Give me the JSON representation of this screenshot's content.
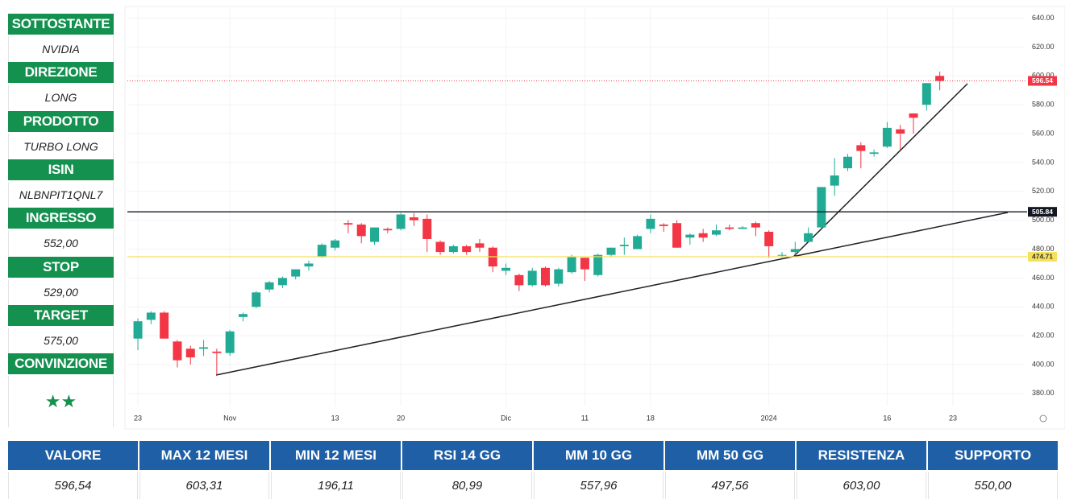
{
  "panel": [
    {
      "label": "SOTTOSTANTE",
      "value": "NVIDIA"
    },
    {
      "label": "DIREZIONE",
      "value": "LONG"
    },
    {
      "label": "PRODOTTO",
      "value": "TURBO LONG"
    },
    {
      "label": "ISIN",
      "value": "NLBNPIT1QNL7"
    },
    {
      "label": "INGRESSO",
      "value": "552,00"
    },
    {
      "label": "STOP",
      "value": "529,00"
    },
    {
      "label": "TARGET",
      "value": "575,00"
    },
    {
      "label": "CONVINZIONE",
      "value": "★★"
    }
  ],
  "chart_data": {
    "type": "candlestick",
    "up_color": "#22ab94",
    "down_color": "#f23645",
    "open": [
      418,
      431,
      436,
      416,
      411,
      411,
      409,
      408,
      433,
      440,
      452,
      455,
      461,
      468,
      475,
      481,
      498,
      497,
      485,
      494,
      494,
      502,
      501,
      485,
      478,
      482,
      484,
      481,
      465,
      462,
      455,
      467,
      456,
      464,
      474,
      462,
      476,
      482,
      480,
      494,
      497,
      498,
      488,
      491,
      490,
      495,
      494,
      498,
      492,
      476,
      478,
      485,
      495,
      524,
      536,
      552,
      546,
      551,
      563,
      574,
      580,
      600
    ],
    "high": [
      432,
      437,
      437,
      417,
      413,
      417,
      411,
      424,
      436,
      451,
      458,
      461,
      466,
      472,
      484,
      487,
      500,
      498,
      495,
      495,
      505,
      505,
      504,
      486,
      483,
      483,
      487,
      482,
      470,
      463,
      467,
      468,
      467,
      476,
      474,
      477,
      481,
      488,
      490,
      504,
      498,
      500,
      491,
      494,
      497,
      497,
      496,
      499,
      493,
      478,
      485,
      495,
      523,
      543,
      546,
      554,
      549,
      568,
      566,
      574,
      595,
      603
    ],
    "low": [
      410,
      428,
      420,
      398,
      400,
      406,
      393,
      406,
      430,
      439,
      450,
      453,
      459,
      465,
      474,
      479,
      491,
      484,
      483,
      491,
      493,
      496,
      478,
      476,
      477,
      476,
      478,
      464,
      462,
      451,
      454,
      454,
      454,
      463,
      458,
      461,
      475,
      476,
      480,
      491,
      492,
      481,
      483,
      485,
      489,
      493,
      494,
      489,
      474,
      474,
      476,
      485,
      494,
      517,
      534,
      536,
      544,
      550,
      549,
      560,
      576,
      590
    ],
    "close": [
      430,
      436,
      418,
      403,
      405,
      412,
      408,
      423,
      435,
      450,
      457,
      460,
      466,
      470,
      483,
      486,
      497,
      489,
      495,
      493,
      504,
      500,
      487,
      478,
      482,
      478,
      481,
      468,
      467,
      455,
      465,
      455,
      466,
      475,
      466,
      476,
      481,
      483,
      489,
      501,
      496,
      481,
      490,
      488,
      493,
      494,
      495,
      495,
      482,
      476,
      480,
      491,
      523,
      531,
      544,
      548,
      547,
      564,
      560,
      571,
      595,
      596.54
    ],
    "xlim": [
      -0.8,
      67.4
    ],
    "xticks": [
      {
        "value": 0,
        "label": "23"
      },
      {
        "value": 7,
        "label": "Nov"
      },
      {
        "value": 15,
        "label": "13"
      },
      {
        "value": 20,
        "label": "20"
      },
      {
        "value": 28,
        "label": "Dic"
      },
      {
        "value": 34,
        "label": "11"
      },
      {
        "value": 39,
        "label": "18"
      },
      {
        "value": 48,
        "label": "2024"
      },
      {
        "value": 57,
        "label": "16"
      },
      {
        "value": 62,
        "label": "23"
      }
    ],
    "ylim": [
      371,
      647
    ],
    "yticks": [
      {
        "value": 380,
        "label": "380.00"
      },
      {
        "value": 400,
        "label": "400.00"
      },
      {
        "value": 420,
        "label": "420.00"
      },
      {
        "value": 440,
        "label": "440.00"
      },
      {
        "value": 460,
        "label": "460.00"
      },
      {
        "value": 480,
        "label": "480.00"
      },
      {
        "value": 500,
        "label": "500.00"
      },
      {
        "value": 520,
        "label": "520.00"
      },
      {
        "value": 540,
        "label": "540.00"
      },
      {
        "value": 560,
        "label": "560.00"
      },
      {
        "value": 580,
        "label": "580.00"
      },
      {
        "value": 600,
        "label": "600.00"
      },
      {
        "value": 620,
        "label": "620.00"
      },
      {
        "value": 640,
        "label": "640.00"
      }
    ],
    "grid": true,
    "price_lines": [
      {
        "value": 596.54,
        "color": "#f23645",
        "text_color": "#ffffff",
        "style": "dotted"
      },
      {
        "value": 505.84,
        "color": "#131722",
        "text_color": "#ffffff",
        "style": "solid"
      },
      {
        "value": 474.71,
        "color": "#f5e15a",
        "text_color": "#333333",
        "style": "solid"
      }
    ]
  },
  "table": {
    "headers": [
      "VALORE",
      "MAX 12 MESI",
      "MIN 12 MESI",
      "RSI 14 GG",
      "MM 10 GG",
      "MM 50 GG",
      "RESISTENZA",
      "SUPPORTO"
    ],
    "rows": [
      [
        "596,54",
        "603,31",
        "196,11",
        "80,99",
        "557,96",
        "497,56",
        "603,00",
        "550,00"
      ]
    ]
  }
}
